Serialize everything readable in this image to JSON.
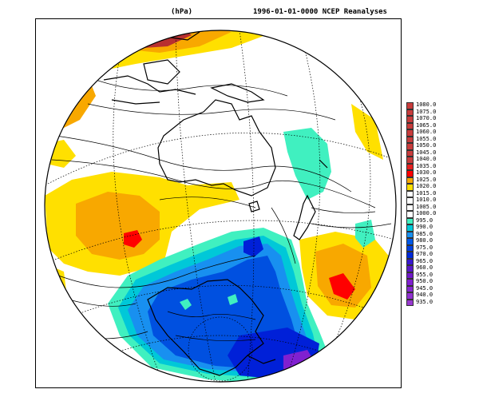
{
  "header": {
    "unit": "(hPa)",
    "title": "1996-01-01-0000 NCEP Reanalyses"
  },
  "colors": {
    "ocean_white": "#ffffff",
    "high_yellow": "#ffe000",
    "high_orange": "#f8a800",
    "high_red": "#ff0000",
    "high_darkred": "#b83030",
    "low_turquoise": "#40f0c0",
    "low_cyan": "#00c8d8",
    "low_lightblue": "#1890f0",
    "low_blue": "#0050e0",
    "low_deepblue": "#0020d8",
    "low_purple": "#8020d0",
    "coast": "#000000",
    "contour": "#000000"
  },
  "legend": {
    "entries": [
      {
        "label": "1080.0",
        "color": "#c83c3c"
      },
      {
        "label": "1075.0",
        "color": "#c83c3c"
      },
      {
        "label": "1070.0",
        "color": "#c83c3c"
      },
      {
        "label": "1065.0",
        "color": "#c83c3c"
      },
      {
        "label": "1060.0",
        "color": "#c83c3c"
      },
      {
        "label": "1055.0",
        "color": "#c83c3c"
      },
      {
        "label": "1050.0",
        "color": "#c83c3c"
      },
      {
        "label": "1045.0",
        "color": "#c83c3c"
      },
      {
        "label": "1040.0",
        "color": "#c83c3c"
      },
      {
        "label": "1035.0",
        "color": "#e82020"
      },
      {
        "label": "1030.0",
        "color": "#ff0000"
      },
      {
        "label": "1025.0",
        "color": "#f8a800"
      },
      {
        "label": "1020.0",
        "color": "#ffe000"
      },
      {
        "label": "1015.0",
        "color": "#ffffff"
      },
      {
        "label": "1010.0",
        "color": "#ffffff"
      },
      {
        "label": "1005.0",
        "color": "#ffffff"
      },
      {
        "label": "1000.0",
        "color": "#ffffff"
      },
      {
        "label": "995.0",
        "color": "#40f0c0"
      },
      {
        "label": "990.0",
        "color": "#00c8d8"
      },
      {
        "label": "985.0",
        "color": "#1890f0"
      },
      {
        "label": "980.0",
        "color": "#0058e8"
      },
      {
        "label": "975.0",
        "color": "#0040e0"
      },
      {
        "label": "970.0",
        "color": "#0028d8"
      },
      {
        "label": "965.0",
        "color": "#3818d0"
      },
      {
        "label": "960.0",
        "color": "#5818c8"
      },
      {
        "label": "955.0",
        "color": "#7018c8"
      },
      {
        "label": "950.0",
        "color": "#8020d0"
      },
      {
        "label": "945.0",
        "color": "#8828d0"
      },
      {
        "label": "940.0",
        "color": "#9030d0"
      },
      {
        "label": "935.0",
        "color": "#9838d0"
      }
    ]
  }
}
